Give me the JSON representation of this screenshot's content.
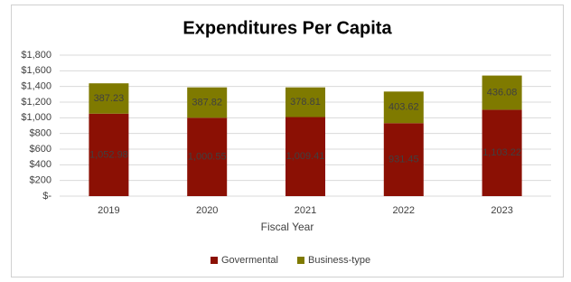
{
  "chart_data": {
    "type": "bar",
    "stacked": true,
    "title": "Expenditures Per Capita",
    "x_label": "Fiscal Year",
    "categories": [
      "2019",
      "2020",
      "2021",
      "2022",
      "2023"
    ],
    "series": [
      {
        "name": "Govermental",
        "color": "#8b1004",
        "values": [
          1052.98,
          1000.55,
          1009.41,
          931.45,
          1103.22
        ],
        "value_labels": [
          "1,052.98",
          "1,000.55",
          "1,009.41",
          "931.45",
          "1,103.22"
        ]
      },
      {
        "name": "Business-type",
        "color": "#7f7a00",
        "values": [
          387.23,
          387.82,
          378.81,
          403.62,
          436.08
        ]
      }
    ],
    "ylim": [
      0,
      1800
    ],
    "yticks": [
      {
        "value": 0,
        "label": "$-"
      },
      {
        "value": 200,
        "label": "$200"
      },
      {
        "value": 400,
        "label": "$400"
      },
      {
        "value": 600,
        "label": "$600"
      },
      {
        "value": 800,
        "label": "$800"
      },
      {
        "value": 1000,
        "label": "$1,000"
      },
      {
        "value": 1200,
        "label": "$1,200"
      },
      {
        "value": 1400,
        "label": "$1,400"
      },
      {
        "value": 1600,
        "label": "$1,600"
      },
      {
        "value": 1800,
        "label": "$1,800"
      }
    ],
    "grid": true,
    "legend": "bottom"
  }
}
